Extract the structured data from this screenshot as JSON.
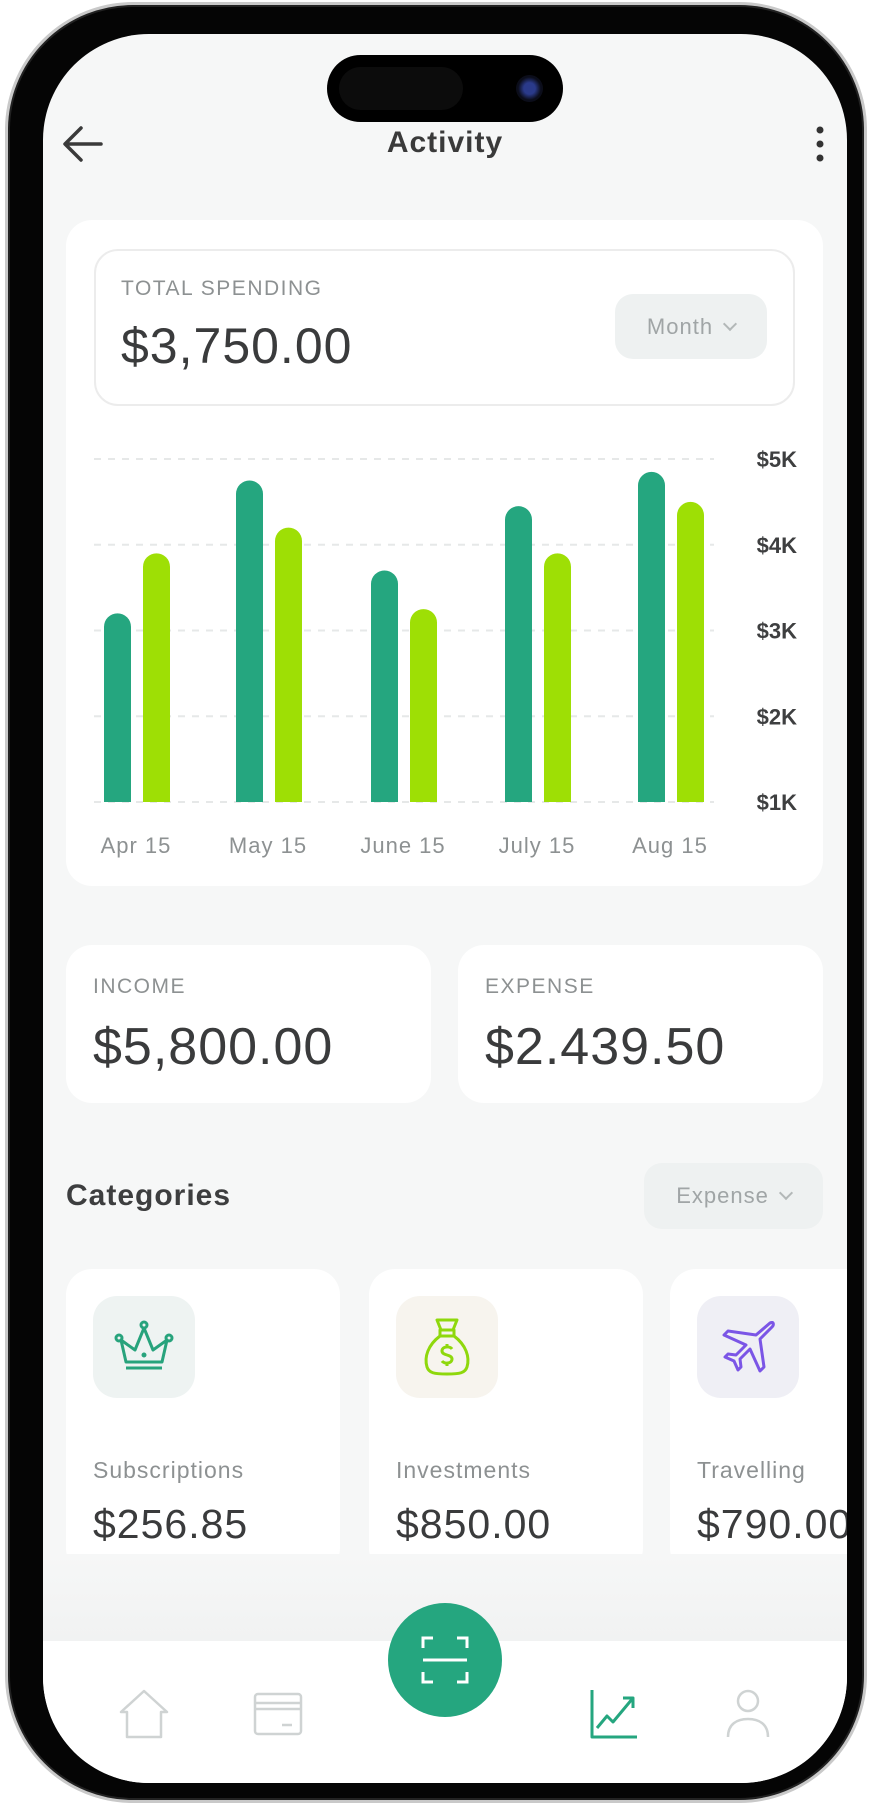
{
  "header": {
    "title": "Activity",
    "back_icon": "arrow-left-icon",
    "menu_icon": "more-vertical-icon"
  },
  "total": {
    "label": "TOTAL SPENDING",
    "amount": "$3,750.00",
    "period": "Month"
  },
  "chart_data": {
    "type": "bar",
    "categories": [
      "Apr 15",
      "May 15",
      "June 15",
      "July 15",
      "Aug 15"
    ],
    "series": [
      {
        "values": [
          3.2,
          4.75,
          3.7,
          4.45,
          4.85
        ],
        "color": "#25a67f"
      },
      {
        "values": [
          3.9,
          4.2,
          3.25,
          3.9,
          4.5
        ],
        "color": "#9edf05"
      }
    ],
    "y_ticks": [
      "$5K",
      "$4K",
      "$3K",
      "$2K",
      "$1K"
    ],
    "y_tick_values": [
      5,
      4,
      3,
      2,
      1
    ],
    "ylim": [
      1,
      5
    ],
    "y_unit": "$K",
    "grid": true,
    "y_axis_position": "right"
  },
  "summary": {
    "income": {
      "label": "INCOME",
      "amount": "$5,800.00"
    },
    "expense": {
      "label": "EXPENSE",
      "amount": "$2.439.50"
    }
  },
  "categories": {
    "title": "Categories",
    "filter": "Expense",
    "items": [
      {
        "label": "Subscriptions",
        "amount": "$256.85",
        "icon": "crown-icon",
        "color": "#27a37c",
        "bg": "#eef3f2"
      },
      {
        "label": "Investments",
        "amount": "$850.00",
        "icon": "money-bag-icon",
        "color": "#8fd80c",
        "bg": "#f7f4ee"
      },
      {
        "label": "Travelling",
        "amount": "$790.00",
        "icon": "airplane-icon",
        "color": "#7b55e6",
        "bg": "#efeff5"
      }
    ]
  },
  "nav": {
    "items": [
      "home-icon",
      "card-icon",
      "scan-icon",
      "chart-icon",
      "profile-icon"
    ],
    "active": "chart-icon",
    "accent": "#25a67f"
  }
}
